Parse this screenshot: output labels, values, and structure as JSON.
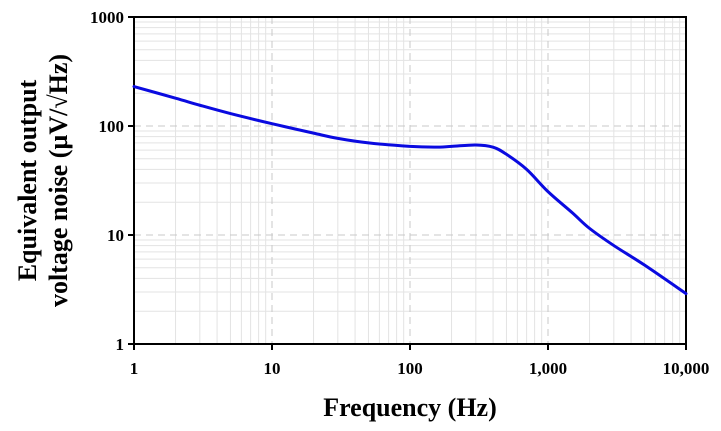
{
  "chart_data": {
    "type": "line",
    "title": "",
    "xlabel": "Frequency (Hz)",
    "ylabel_line1": "Equivalent output",
    "ylabel_line2": "voltage noise (µV/√Hz)",
    "x_scale": "log",
    "y_scale": "log",
    "xlim": [
      1,
      10000
    ],
    "ylim": [
      1,
      1000
    ],
    "x_ticks": [
      1,
      10,
      100,
      1000,
      10000
    ],
    "x_tick_labels": [
      "1",
      "10",
      "100",
      "1,000",
      "10,000"
    ],
    "y_ticks": [
      1,
      10,
      100,
      1000
    ],
    "y_tick_labels": [
      "1",
      "10",
      "100",
      "1000"
    ],
    "grid": true,
    "line_color": "#0a0ae0",
    "series": [
      {
        "x": [
          1,
          2,
          3,
          5,
          10,
          20,
          30,
          50,
          100,
          150,
          200,
          300,
          400,
          500,
          700,
          1000,
          1500,
          2000,
          3000,
          5000,
          10000
        ],
        "y": [
          230,
          180,
          155,
          130,
          105,
          86,
          77,
          70,
          65,
          64,
          65,
          67,
          64,
          55,
          40,
          25,
          16,
          11.5,
          8,
          5.3,
          2.9
        ]
      }
    ]
  }
}
